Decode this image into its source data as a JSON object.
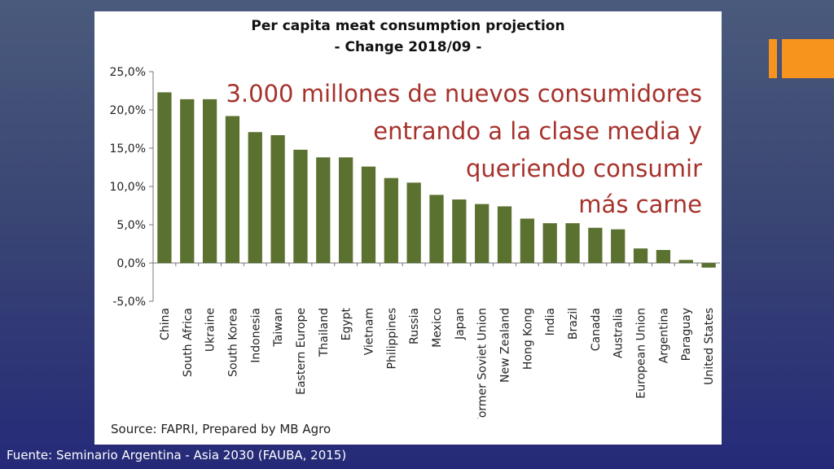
{
  "chart_data": {
    "type": "bar",
    "title": "Per capita meat consumption projection",
    "subtitle": "- Change 2018/09 -",
    "categories": [
      "China",
      "South Africa",
      "Ukraine",
      "South Korea",
      "Indonesia",
      "Taiwan",
      "Eastern Europe",
      "Thailand",
      "Egypt",
      "Vietnam",
      "Philippines",
      "Russia",
      "Mexico",
      "Japan",
      "Former Soviet Union",
      "New Zealand",
      "Hong Kong",
      "India",
      "Brazil",
      "Canada",
      "Australia",
      "European Union",
      "Argentina",
      "Paraguay",
      "United States"
    ],
    "values": [
      22.3,
      21.4,
      21.4,
      19.2,
      17.1,
      16.7,
      14.8,
      13.8,
      13.8,
      12.6,
      11.1,
      10.5,
      8.9,
      8.3,
      7.7,
      7.4,
      5.8,
      5.2,
      5.2,
      4.6,
      4.4,
      1.9,
      1.7,
      0.4,
      -0.6
    ],
    "ylim": [
      -5,
      25
    ],
    "yticks": [
      25,
      20,
      15,
      10,
      5,
      0,
      -5
    ],
    "ytick_labels": [
      "25,0%",
      "20,0%",
      "15,0%",
      "10,0%",
      "5,0%",
      "0,0%",
      "-5,0%"
    ],
    "xlabel": "",
    "ylabel": "",
    "bar_color": "#5a7130",
    "grid": false
  },
  "annotation": {
    "lines": [
      "3.000 millones de nuevos consumidores",
      "entrando a la clase media y",
      "queriendo consumir",
      "más carne"
    ],
    "color": "#a6322c"
  },
  "chart_source": "Source: FAPRI, Prepared by MB Agro",
  "footer": "Fuente: Seminario Argentina - Asia 2030 (FAUBA, 2015)",
  "colors": {
    "accent": "#f7941d",
    "background_top": "#4a5a7c",
    "background_bottom": "#252a78"
  }
}
